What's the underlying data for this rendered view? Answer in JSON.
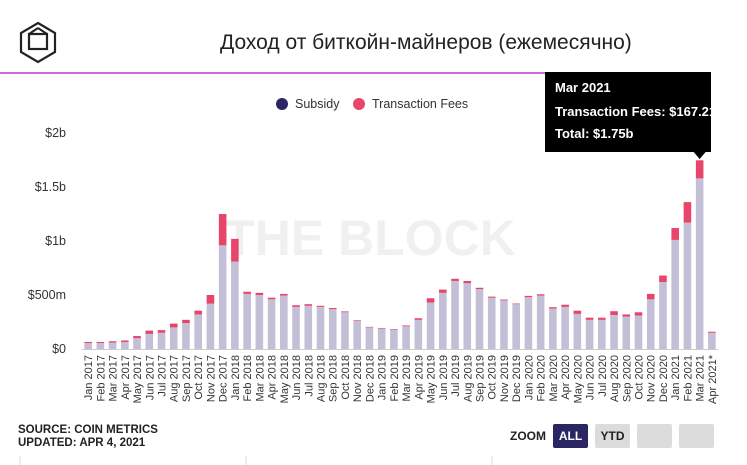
{
  "header": {
    "title": "Доход от биткойн-майнеров (ежемесячно)"
  },
  "watermark": "THE BLOCK",
  "footer": {
    "source": "SOURCE: COIN METRICS",
    "updated": "UPDATED: APR 4, 2021"
  },
  "zoom": {
    "label": "ZOOM",
    "buttons": [
      "ALL",
      "YTD"
    ],
    "active": "ALL"
  },
  "colors": {
    "subsidy": "#c3bfd6",
    "fees": "#e8456b",
    "legend_subsidy": "#2a2663",
    "accent": "#c86dd7",
    "active_button": "#2a2663"
  },
  "tooltip": {
    "month": "Mar 2021",
    "fees_label": "Transaction Fees:",
    "fees_value": "$167.21m",
    "total_label": "Total:",
    "total_value": "$1.75b"
  },
  "chart_data": {
    "type": "bar",
    "stacked": true,
    "title": "Доход от биткойн-майнеров (ежемесячно)",
    "ylim": [
      0,
      2000
    ],
    "y_unit": "USD millions",
    "yticks": [
      "$0",
      "$500m",
      "$1b",
      "$1.5b",
      "$2b"
    ],
    "legend": [
      "Subsidy",
      "Transaction Fees"
    ],
    "legend_position": "top",
    "grid": false,
    "categories": [
      "Jan 2017",
      "Feb 2017",
      "Mar 2017",
      "Apr 2017",
      "May 2017",
      "Jun 2017",
      "Jul 2017",
      "Aug 2017",
      "Sep 2017",
      "Oct 2017",
      "Nov 2017",
      "Dec 2017",
      "Jan 2018",
      "Feb 2018",
      "Mar 2018",
      "Apr 2018",
      "May 2018",
      "Jun 2018",
      "Jul 2018",
      "Aug 2018",
      "Sep 2018",
      "Oct 2018",
      "Nov 2018",
      "Dec 2018",
      "Jan 2019",
      "Feb 2019",
      "Mar 2019",
      "Apr 2019",
      "May 2019",
      "Jun 2019",
      "Jul 2019",
      "Aug 2019",
      "Sep 2019",
      "Oct 2019",
      "Nov 2019",
      "Dec 2019",
      "Jan 2020",
      "Feb 2020",
      "Mar 2020",
      "Apr 2020",
      "May 2020",
      "Jun 2020",
      "Jul 2020",
      "Aug 2020",
      "Sep 2020",
      "Oct 2020",
      "Nov 2020",
      "Dec 2020",
      "Jan 2021",
      "Feb 2021",
      "Mar 2021",
      "Apr 2021*"
    ],
    "series": [
      {
        "name": "Subsidy",
        "values": [
          55,
          55,
          60,
          65,
          100,
          140,
          150,
          200,
          240,
          320,
          420,
          960,
          810,
          510,
          500,
          460,
          495,
          390,
          400,
          390,
          370,
          340,
          260,
          200,
          190,
          180,
          210,
          270,
          430,
          520,
          630,
          610,
          555,
          475,
          450,
          415,
          480,
          495,
          375,
          390,
          325,
          270,
          270,
          315,
          300,
          310,
          460,
          620,
          1010,
          1170,
          1580,
          150
        ]
      },
      {
        "name": "Transaction Fees",
        "values": [
          10,
          10,
          12,
          14,
          20,
          30,
          25,
          35,
          30,
          35,
          80,
          290,
          210,
          20,
          20,
          15,
          15,
          15,
          15,
          10,
          10,
          8,
          6,
          5,
          5,
          5,
          8,
          15,
          40,
          30,
          20,
          20,
          12,
          10,
          8,
          6,
          12,
          12,
          12,
          20,
          30,
          20,
          20,
          35,
          20,
          30,
          50,
          60,
          110,
          190,
          167.21,
          10
        ]
      }
    ]
  }
}
